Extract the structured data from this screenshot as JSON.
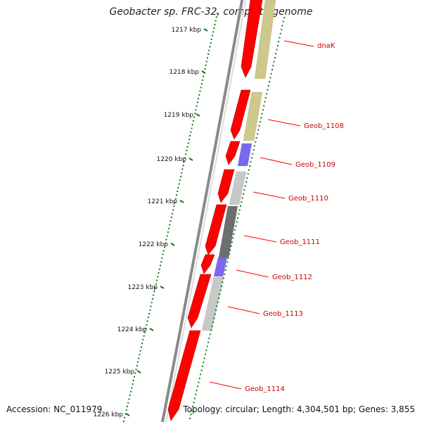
{
  "title": "Geobacter sp. FRC-32, complete genome",
  "footer": {
    "accession": "Accession: NC_011979",
    "topology": "Topology: circular; Length: 4,304,501 bp; Genes: 3,855"
  },
  "ruler": {
    "unit": "kbp",
    "ticks": [
      "1217 kbp",
      "1218 kbp",
      "1219 kbp",
      "1220 kbp",
      "1221 kbp",
      "1222 kbp",
      "1223 kbp",
      "1224 kbp",
      "1225 kbp",
      "1226 kbp"
    ]
  },
  "genes": [
    {
      "label": "dnaK"
    },
    {
      "label": "Geob_1108"
    },
    {
      "label": "Geob_1109"
    },
    {
      "label": "Geob_1110"
    },
    {
      "label": "Geob_1111"
    },
    {
      "label": "Geob_1112"
    },
    {
      "label": "Geob_1113"
    },
    {
      "label": "Geob_1114"
    }
  ],
  "colors": {
    "cds": "#ff0000",
    "label": "#cc0000",
    "ruler_tick": "#117711",
    "backbone": "#888888",
    "category_olive": "#cfc88c",
    "category_purple": "#7b68ee",
    "category_light_gray": "#c8c8c8",
    "category_dark_gray": "#6e6e6e"
  }
}
